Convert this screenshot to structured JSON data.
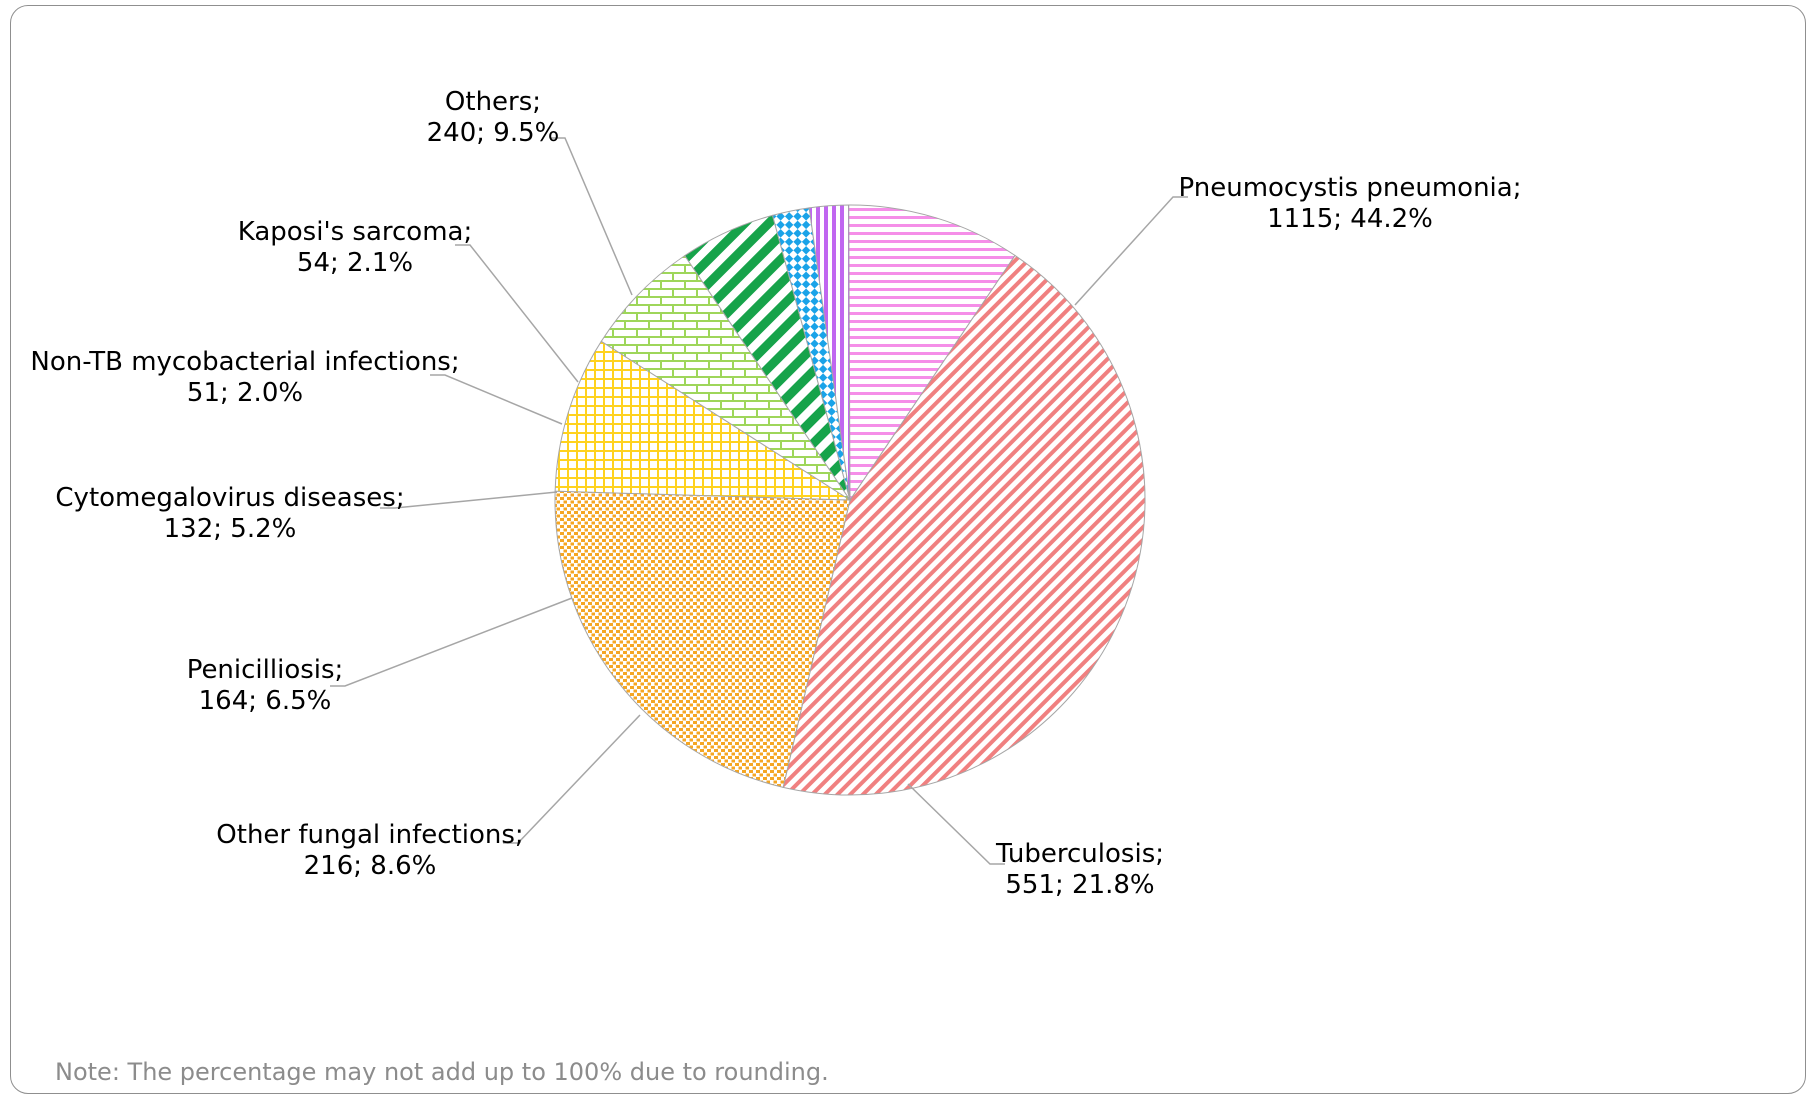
{
  "chart_data": {
    "type": "pie",
    "title": "",
    "start_angle_deg": 34,
    "direction": "clockwise",
    "slices": [
      {
        "name": "Pneumocystis pneumonia",
        "value": 1115,
        "percent": "44.2%",
        "label_line1": "Pneumocystis pneumonia;",
        "label_line2": "1115; 44.2%",
        "color": "#f08080",
        "pattern": "diagonal-stripes"
      },
      {
        "name": "Tuberculosis",
        "value": 551,
        "percent": "21.8%",
        "label_line1": "Tuberculosis;",
        "label_line2": "551; 21.8%",
        "color": "#f5a623",
        "pattern": "dots"
      },
      {
        "name": "Other fungal infections",
        "value": 216,
        "percent": "8.6%",
        "label_line1": "Other fungal infections;",
        "label_line2": "216; 8.6%",
        "color": "#ffd21f",
        "pattern": "grid"
      },
      {
        "name": "Penicilliosis",
        "value": 164,
        "percent": "6.5%",
        "label_line1": "Penicilliosis;",
        "label_line2": "164; 6.5%",
        "color": "#9ed65a",
        "pattern": "bricks"
      },
      {
        "name": "Cytomegalovirus diseases",
        "value": 132,
        "percent": "5.2%",
        "label_line1": "Cytomegalovirus diseases;",
        "label_line2": "132; 5.2%",
        "color": "#16a34a",
        "pattern": "wide-diagonal"
      },
      {
        "name": "Non-TB mycobacterial infections",
        "value": 51,
        "percent": "2.0%",
        "label_line1": "Non-TB mycobacterial infections;",
        "label_line2": "51; 2.0%",
        "color": "#1aa3e8",
        "pattern": "checker"
      },
      {
        "name": "Kaposi's sarcoma",
        "value": 54,
        "percent": "2.1%",
        "label_line1": "Kaposi's sarcoma;",
        "label_line2": "54; 2.1%",
        "color": "#c066f0",
        "pattern": "vertical-stripes"
      },
      {
        "name": "Others",
        "value": 240,
        "percent": "9.5%",
        "label_line1": "Others;",
        "label_line2": "240; 9.5%",
        "color": "#f58ee8",
        "pattern": "horizontal-stripes"
      }
    ],
    "note": "Note: The percentage may not add up to 100% due to rounding."
  }
}
